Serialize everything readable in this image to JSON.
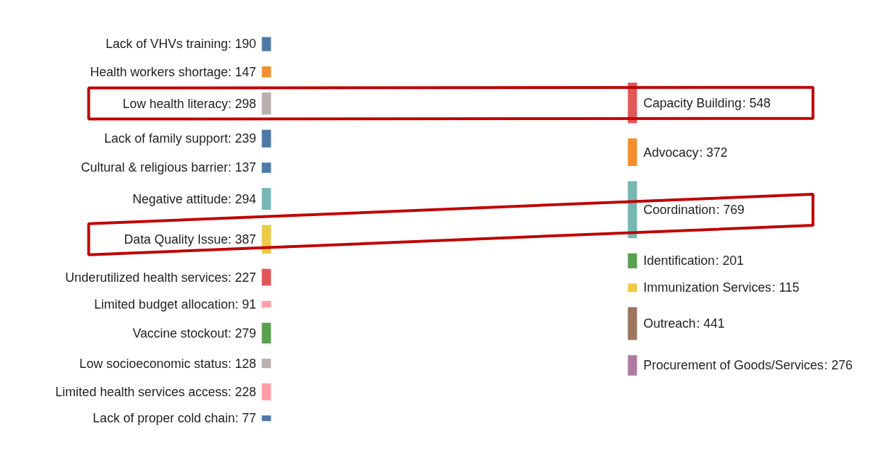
{
  "chart_data": {
    "type": "other",
    "categories": [
      "Lack of VHVs training",
      "Health workers shortage",
      "Low health literacy",
      "Lack of family support",
      "Cultural & religious barrier",
      "Negative attitude",
      "Data Quality Issue",
      "Underutilized health services",
      "Limited budget allocation",
      "Vaccine stockout",
      "Low socioeconomic status",
      "Limited health services access",
      "Lack of proper cold chain",
      "Capacity Building",
      "Advocacy",
      "Coordination",
      "Identification",
      "Immunization Services",
      "Outreach",
      "Procurement of Goods/Services"
    ],
    "values": [
      190,
      147,
      298,
      239,
      137,
      294,
      387,
      227,
      91,
      279,
      128,
      228,
      77,
      548,
      372,
      769,
      201,
      115,
      441,
      276
    ],
    "colors": [
      "#4e79a7",
      "#f28e2b",
      "#bab0ac",
      "#4e79a7",
      "#4e79a7",
      "#76b7b2",
      "#edc948",
      "#e15759",
      "#ff9da7",
      "#59a14f",
      "#bab0ac",
      "#ff9da7",
      "#4e79a7",
      "#e15759",
      "#f28e2b",
      "#76b7b2",
      "#59a14f",
      "#edc948",
      "#9c755f",
      "#b07aa1"
    ],
    "value_labels": [
      ": 190",
      ": 147",
      ": 298",
      ": 239",
      ": 137",
      ": 294",
      ": 387",
      ": 227",
      ": 91",
      ": 279",
      ": 128",
      ": 228",
      ": 77",
      ": 548",
      ": 372",
      ": 769",
      ": 201",
      ": 115",
      ": 441",
      ": 276"
    ]
  }
}
